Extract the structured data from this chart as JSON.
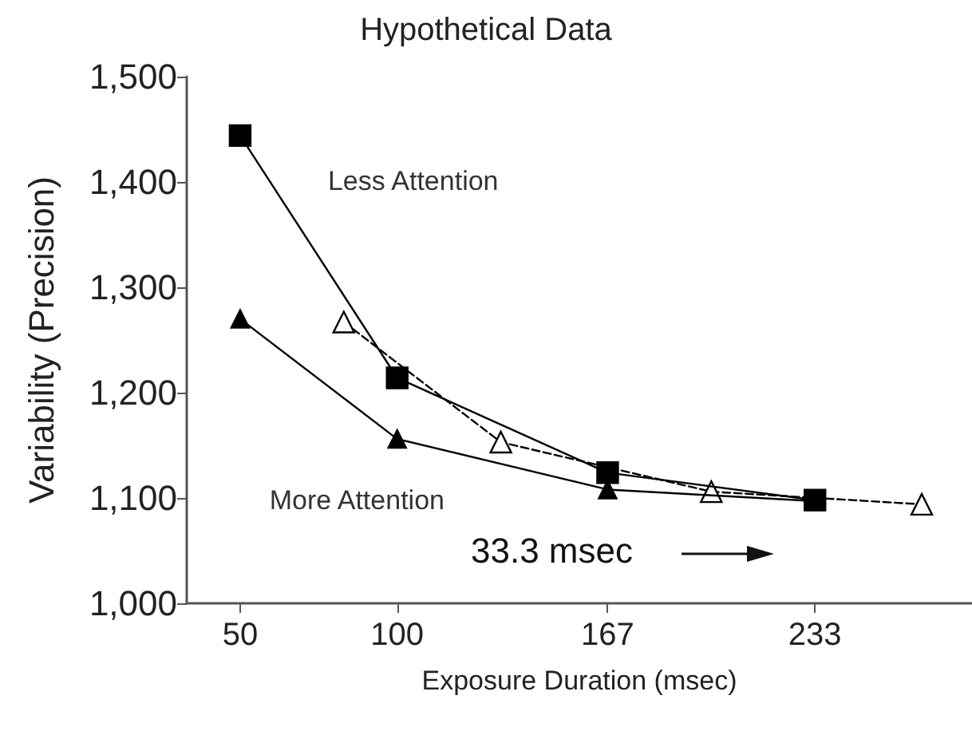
{
  "chart_data": {
    "type": "line",
    "title": "Hypothetical Data",
    "xlabel": "Exposure Duration (msec)",
    "ylabel": "Variability (Precision)",
    "xlim": [
      33,
      283
    ],
    "xticks": [
      50,
      100,
      167,
      233
    ],
    "ylim": [
      1000,
      1500
    ],
    "yticks": [
      {
        "value": 1000,
        "label": "1,000"
      },
      {
        "value": 1100,
        "label": "1,100"
      },
      {
        "value": 1200,
        "label": "1,200"
      },
      {
        "value": 1300,
        "label": "1,300"
      },
      {
        "value": 1400,
        "label": "1,400"
      },
      {
        "value": 1500,
        "label": "1,500"
      }
    ],
    "grid": false,
    "legend": false,
    "annotations": [
      "33.3 msec"
    ],
    "series": [
      {
        "name": "Less Attention",
        "color": "#000000",
        "marker": "square",
        "line_style": "solid",
        "x": [
          50,
          100,
          167,
          233
        ],
        "values": [
          1444,
          1214,
          1124,
          1098
        ]
      },
      {
        "name": "More Attention",
        "color": "#000000",
        "marker": "triangle",
        "line_style": "solid",
        "x": [
          50,
          100,
          167,
          233
        ],
        "values": [
          1270,
          1156,
          1108,
          1097
        ]
      },
      {
        "color": "#000000",
        "marker": "triangle",
        "line_style": "dashed",
        "x": [
          83,
          133,
          200,
          267
        ],
        "values": [
          1267,
          1153,
          1106,
          1094
        ]
      }
    ]
  }
}
